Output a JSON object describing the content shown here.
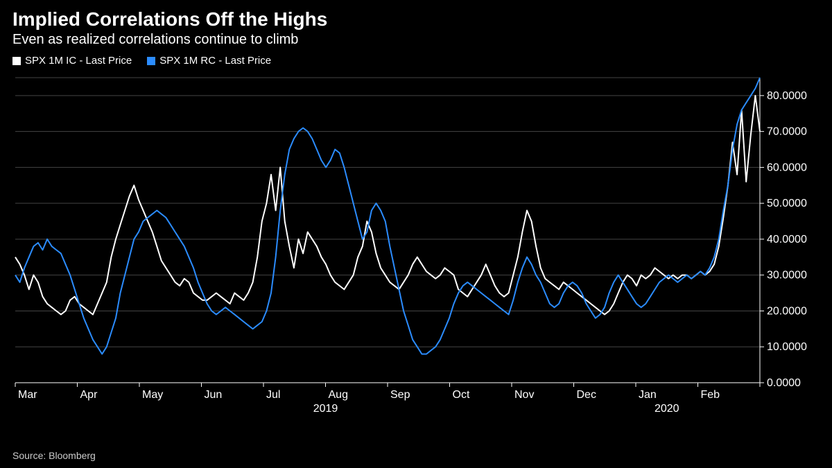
{
  "title": "Implied Correlations Off the Highs",
  "subtitle": "Even as realized correlations continue to climb",
  "source": "Source: Bloomberg",
  "legend": [
    {
      "label": "SPX 1M IC - Last Price",
      "color": "#ffffff"
    },
    {
      "label": "SPX 1M RC - Last Price",
      "color": "#2b8cff"
    }
  ],
  "chart": {
    "type": "line",
    "background_color": "#000000",
    "grid_color": "#444444",
    "axis_text_color": "#ffffff",
    "ylim": [
      0,
      85
    ],
    "yticks": [
      0,
      10,
      20,
      30,
      40,
      50,
      60,
      70,
      80
    ],
    "ytick_labels": [
      "0.0000",
      "10.0000",
      "20.0000",
      "30.0000",
      "40.0000",
      "50.0000",
      "60.0000",
      "70.0000",
      "80.0000"
    ],
    "x_months": [
      "Mar",
      "Apr",
      "May",
      "Jun",
      "Jul",
      "Aug",
      "Sep",
      "Oct",
      "Nov",
      "Dec",
      "Jan",
      "Feb"
    ],
    "year_labels": [
      {
        "text": "2019",
        "month_index": 5
      },
      {
        "text": "2020",
        "month_index": 10.5
      }
    ],
    "line_width": 2,
    "series": [
      {
        "name": "SPX 1M IC",
        "color": "#ffffff",
        "values": [
          35,
          33,
          30,
          26,
          30,
          28,
          24,
          22,
          21,
          20,
          19,
          20,
          23,
          24,
          22,
          21,
          20,
          19,
          22,
          25,
          28,
          35,
          40,
          44,
          48,
          52,
          55,
          51,
          48,
          45,
          42,
          38,
          34,
          32,
          30,
          28,
          27,
          29,
          28,
          25,
          24,
          23,
          23,
          24,
          25,
          24,
          23,
          22,
          25,
          24,
          23,
          25,
          28,
          35,
          45,
          50,
          58,
          48,
          60,
          45,
          38,
          32,
          40,
          36,
          42,
          40,
          38,
          35,
          33,
          30,
          28,
          27,
          26,
          28,
          30,
          35,
          38,
          45,
          42,
          36,
          32,
          30,
          28,
          27,
          26,
          28,
          30,
          33,
          35,
          33,
          31,
          30,
          29,
          30,
          32,
          31,
          30,
          26,
          25,
          24,
          26,
          28,
          30,
          33,
          30,
          27,
          25,
          24,
          25,
          30,
          35,
          42,
          48,
          45,
          38,
          32,
          29,
          28,
          27,
          26,
          28,
          27,
          26,
          25,
          24,
          23,
          22,
          21,
          20,
          19,
          20,
          22,
          25,
          28,
          30,
          29,
          27,
          30,
          29,
          30,
          32,
          31,
          30,
          29,
          30,
          29,
          30,
          30,
          29,
          30,
          31,
          30,
          31,
          33,
          38,
          46,
          55,
          67,
          58,
          76,
          56,
          69,
          80,
          70
        ]
      },
      {
        "name": "SPX 1M RC",
        "color": "#2b8cff",
        "values": [
          30,
          28,
          32,
          35,
          38,
          39,
          37,
          40,
          38,
          37,
          36,
          33,
          30,
          26,
          22,
          18,
          15,
          12,
          10,
          8,
          10,
          14,
          18,
          25,
          30,
          35,
          40,
          42,
          45,
          46,
          47,
          48,
          47,
          46,
          44,
          42,
          40,
          38,
          35,
          32,
          28,
          25,
          22,
          20,
          19,
          20,
          21,
          20,
          19,
          18,
          17,
          16,
          15,
          16,
          17,
          20,
          25,
          35,
          48,
          58,
          65,
          68,
          70,
          71,
          70,
          68,
          65,
          62,
          60,
          62,
          65,
          64,
          60,
          55,
          50,
          45,
          40,
          42,
          48,
          50,
          48,
          45,
          38,
          32,
          26,
          20,
          16,
          12,
          10,
          8,
          8,
          9,
          10,
          12,
          15,
          18,
          22,
          25,
          27,
          28,
          27,
          26,
          25,
          24,
          23,
          22,
          21,
          20,
          19,
          23,
          28,
          32,
          35,
          33,
          30,
          28,
          25,
          22,
          21,
          22,
          25,
          27,
          28,
          27,
          25,
          22,
          20,
          18,
          19,
          21,
          25,
          28,
          30,
          28,
          26,
          24,
          22,
          21,
          22,
          24,
          26,
          28,
          29,
          30,
          29,
          28,
          29,
          30,
          29,
          30,
          31,
          30,
          32,
          35,
          40,
          48,
          55,
          65,
          72,
          76,
          78,
          80,
          82,
          85
        ]
      }
    ]
  }
}
